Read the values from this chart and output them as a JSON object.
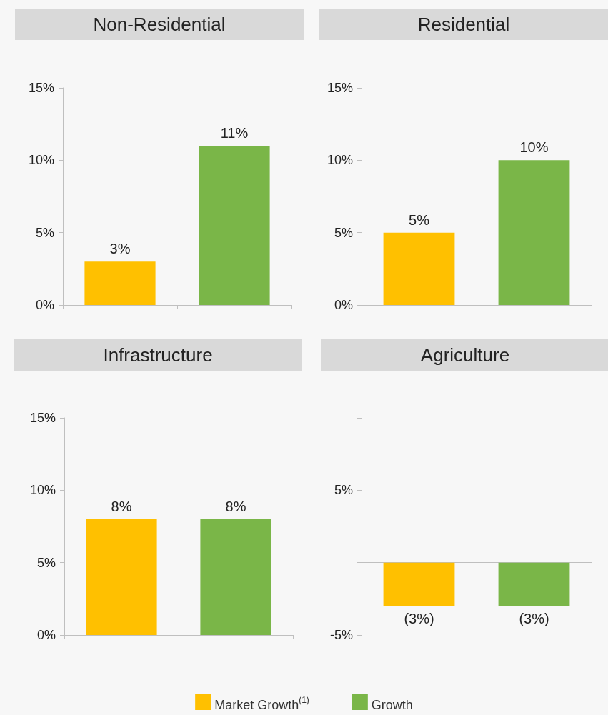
{
  "chart_data": [
    {
      "type": "bar",
      "title": "Non-Residential",
      "categories": [
        null,
        null
      ],
      "ylim": [
        0,
        15
      ],
      "yticks": [
        {
          "value": 0,
          "label": "0%"
        },
        {
          "value": 5,
          "label": "5%"
        },
        {
          "value": 10,
          "label": "10%"
        },
        {
          "value": 15,
          "label": "15%"
        }
      ],
      "series": [
        {
          "color": "#ffc000",
          "values": [
            3,
            null
          ],
          "value_labels": [
            "3%",
            null
          ]
        },
        {
          "color": "#7ab648",
          "values": [
            null,
            11
          ],
          "value_labels": [
            null,
            "11%"
          ]
        }
      ]
    },
    {
      "type": "bar",
      "title": "Residential",
      "categories": [
        null,
        null
      ],
      "ylim": [
        0,
        15
      ],
      "yticks": [
        {
          "value": 0,
          "label": "0%"
        },
        {
          "value": 5,
          "label": "5%"
        },
        {
          "value": 10,
          "label": "10%"
        },
        {
          "value": 15,
          "label": "15%"
        }
      ],
      "series": [
        {
          "color": "#ffc000",
          "values": [
            5,
            null
          ],
          "value_labels": [
            "5%",
            null
          ]
        },
        {
          "color": "#7ab648",
          "values": [
            null,
            10
          ],
          "value_labels": [
            null,
            "10%"
          ]
        }
      ]
    },
    {
      "type": "bar",
      "title": "Infrastructure",
      "categories": [
        null,
        null
      ],
      "ylim": [
        0,
        15
      ],
      "yticks": [
        {
          "value": 0,
          "label": "0%"
        },
        {
          "value": 5,
          "label": "5%"
        },
        {
          "value": 10,
          "label": "10%"
        },
        {
          "value": 15,
          "label": "15%"
        }
      ],
      "series": [
        {
          "color": "#ffc000",
          "values": [
            8,
            null
          ],
          "value_labels": [
            "8%",
            null
          ]
        },
        {
          "color": "#7ab648",
          "values": [
            null,
            8
          ],
          "value_labels": [
            null,
            "8%"
          ]
        }
      ]
    },
    {
      "type": "bar",
      "title": "Agriculture",
      "categories": [
        null,
        null
      ],
      "ylim": [
        -5,
        10
      ],
      "yticks": [
        {
          "value": -5,
          "label": "-5%"
        },
        {
          "value": 0,
          "label": null
        },
        {
          "value": 5,
          "label": "5%"
        },
        {
          "value": 10,
          "label": null
        }
      ],
      "legend": "bottom",
      "series": [
        {
          "name": "Market Growth$^{(1)}$",
          "color": "#ffc000",
          "values": [
            -3,
            null
          ],
          "value_labels": [
            "(3%)",
            null
          ]
        },
        {
          "name": "Growth",
          "color": "#7ab648",
          "values": [
            null,
            -3
          ],
          "value_labels": [
            null,
            "(3%)"
          ]
        }
      ]
    }
  ]
}
